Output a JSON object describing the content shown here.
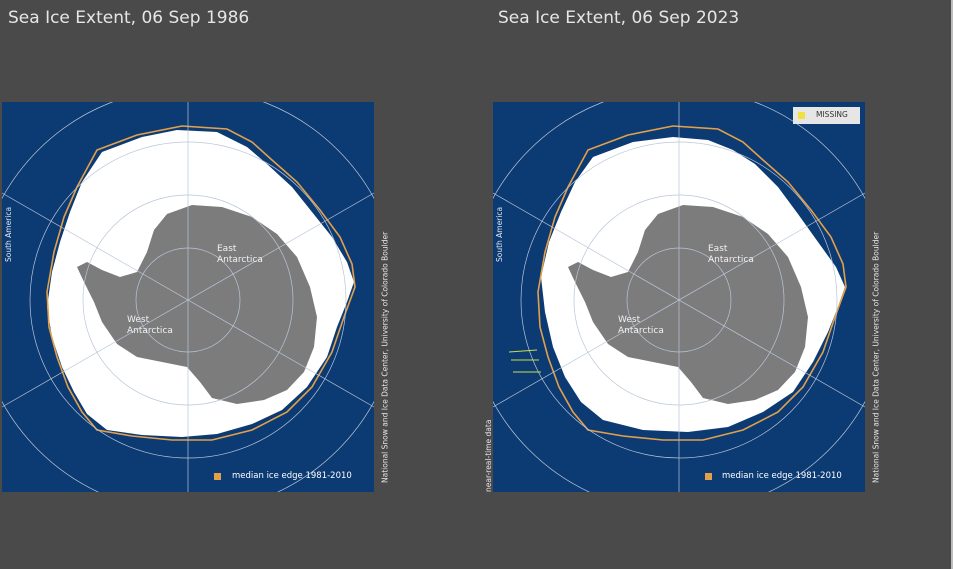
{
  "maps": [
    {
      "title": "Sea Ice Extent, 06 Sep 1986",
      "labels": {
        "east": "East\nAntarctica",
        "west": "West\nAntarctica"
      },
      "side_label": "South America",
      "legend": "median ice edge 1981-2010",
      "credit": "National Snow and Ice Data Center, University of Colorado Boulder"
    },
    {
      "title": "Sea Ice Extent, 06 Sep 2023",
      "labels": {
        "east": "East\nAntarctica",
        "west": "West\nAntarctica"
      },
      "side_label": "South America",
      "legend": "median ice edge 1981-2010",
      "missing_label": "MISSING",
      "realtime_label": "near-real-time data",
      "credit": "National Snow and Ice Data Center, University of Colorado Boulder"
    }
  ],
  "colors": {
    "ocean": "#0c3a73",
    "ice": "#ffffff",
    "land": "#7c7c7c",
    "median_edge": "#e3a04a",
    "missing": "#f0e040"
  }
}
